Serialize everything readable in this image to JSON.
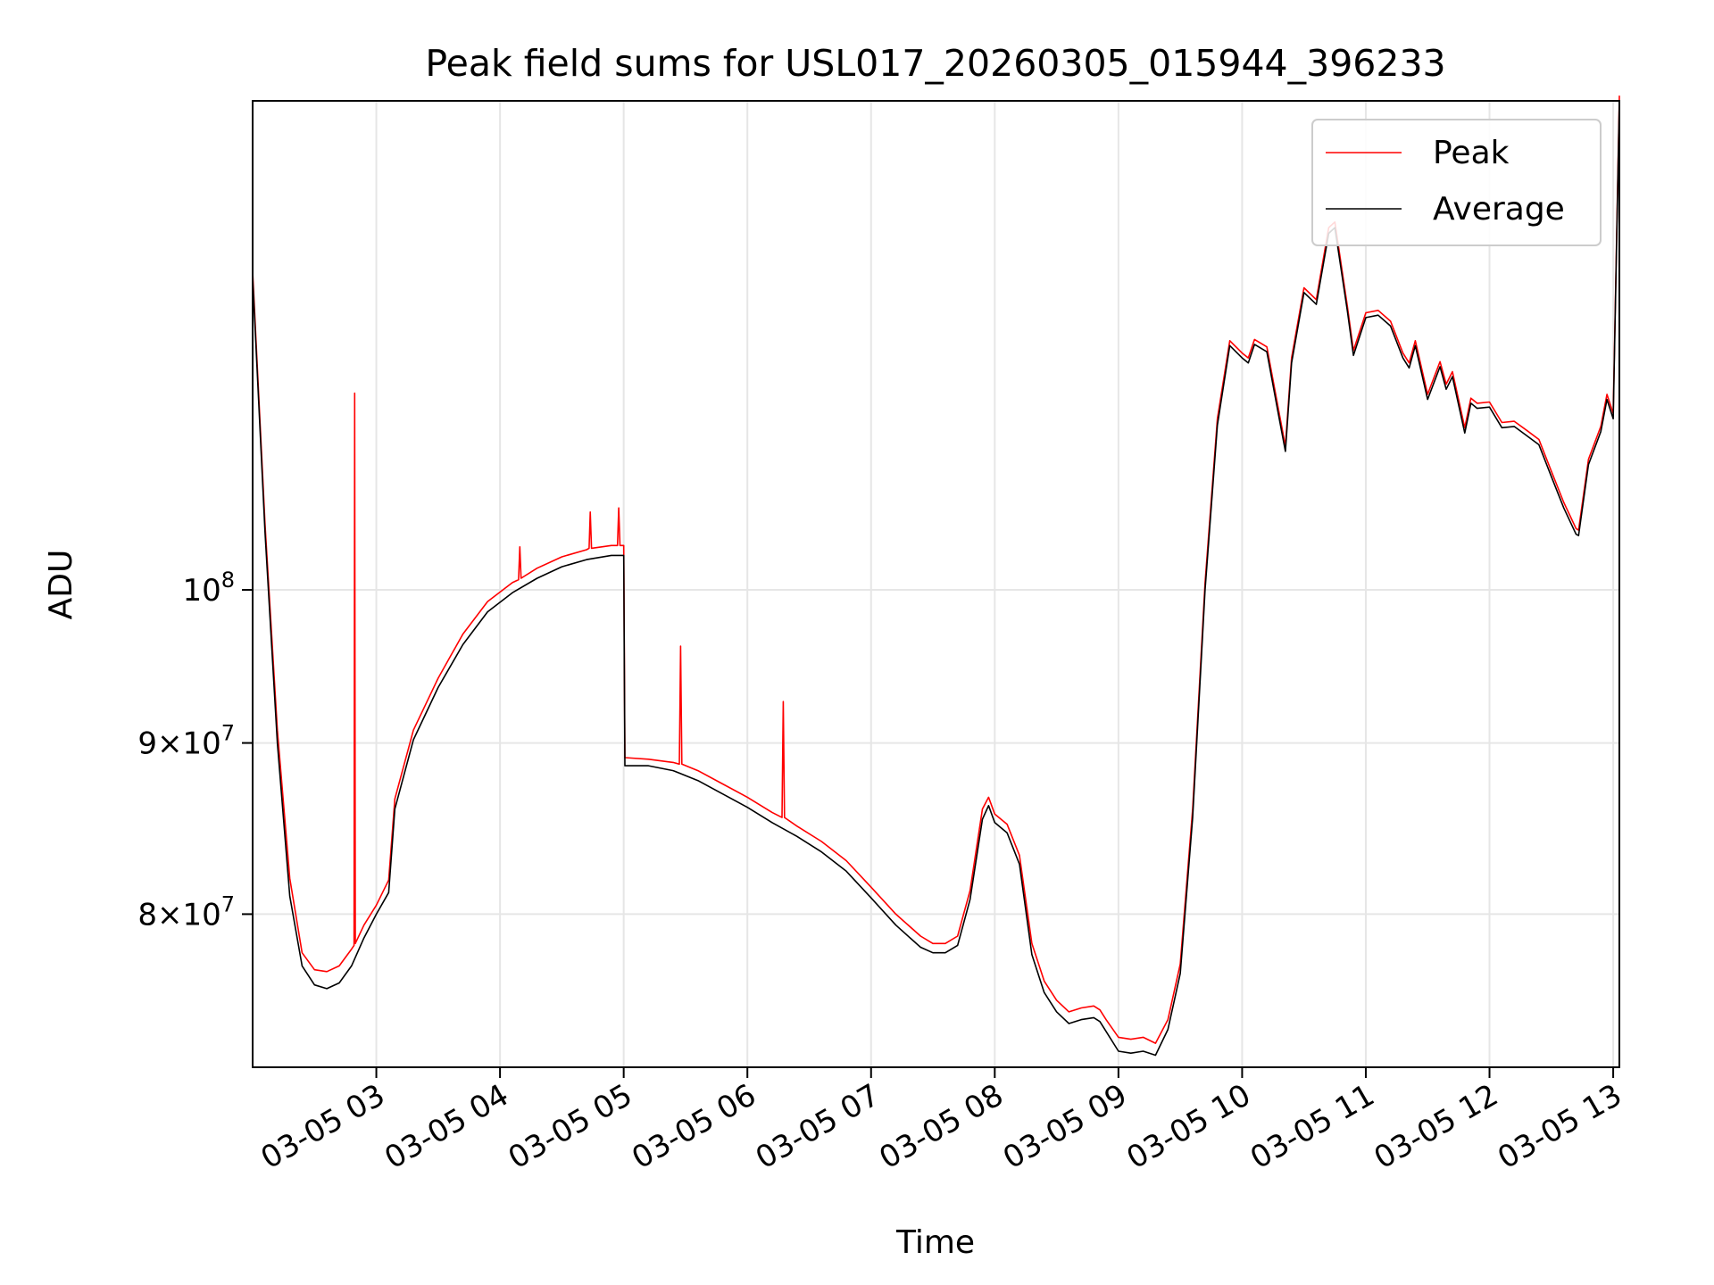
{
  "chart_data": {
    "type": "line",
    "title": "Peak field sums for USL017_20260305_015944_396233",
    "xlabel": "Time",
    "ylabel": "ADU",
    "xlim": [
      2.0,
      13.05
    ],
    "ylim": [
      72000000,
      140000000
    ],
    "yscale": "log",
    "grid": true,
    "legend": {
      "location": "upper right",
      "entries": [
        "Peak",
        "Average"
      ]
    },
    "x_ticks": [
      {
        "value": 3,
        "label": "03-05 03"
      },
      {
        "value": 4,
        "label": "03-05 04"
      },
      {
        "value": 5,
        "label": "03-05 05"
      },
      {
        "value": 6,
        "label": "03-05 06"
      },
      {
        "value": 7,
        "label": "03-05 07"
      },
      {
        "value": 8,
        "label": "03-05 08"
      },
      {
        "value": 9,
        "label": "03-05 09"
      },
      {
        "value": 10,
        "label": "03-05 10"
      },
      {
        "value": 11,
        "label": "03-05 11"
      },
      {
        "value": 12,
        "label": "03-05 12"
      },
      {
        "value": 13,
        "label": "03-05 13"
      }
    ],
    "y_ticks": [
      {
        "value": 80000000,
        "base": "8×10",
        "exp": "7"
      },
      {
        "value": 90000000,
        "base": "9×10",
        "exp": "7"
      },
      {
        "value": 100000000,
        "base": "10",
        "exp": "8"
      }
    ],
    "series": [
      {
        "name": "Average",
        "color": "#000000",
        "x": [
          2.0,
          2.1,
          2.2,
          2.3,
          2.4,
          2.5,
          2.6,
          2.7,
          2.8,
          2.9,
          3.0,
          3.1,
          3.15,
          3.3,
          3.5,
          3.7,
          3.9,
          4.1,
          4.3,
          4.5,
          4.7,
          4.9,
          5.0,
          5.01,
          5.2,
          5.4,
          5.6,
          5.8,
          6.0,
          6.2,
          6.4,
          6.6,
          6.8,
          7.0,
          7.2,
          7.4,
          7.5,
          7.6,
          7.7,
          7.8,
          7.9,
          7.95,
          8.0,
          8.1,
          8.2,
          8.3,
          8.4,
          8.5,
          8.6,
          8.7,
          8.8,
          8.85,
          8.9,
          9.0,
          9.1,
          9.2,
          9.3,
          9.4,
          9.5,
          9.6,
          9.7,
          9.8,
          9.9,
          10.0,
          10.05,
          10.1,
          10.2,
          10.3,
          10.35,
          10.4,
          10.5,
          10.6,
          10.7,
          10.75,
          10.85,
          10.9,
          11.0,
          11.1,
          11.2,
          11.3,
          11.35,
          11.4,
          11.5,
          11.6,
          11.65,
          11.7,
          11.8,
          11.85,
          11.9,
          12.0,
          12.1,
          12.2,
          12.3,
          12.4,
          12.5,
          12.6,
          12.7,
          12.72,
          12.8,
          12.9,
          12.95,
          13.0,
          13.05
        ],
        "values": [
          124000000,
          104000000,
          90000000,
          81000000,
          77200000,
          76200000,
          76000000,
          76300000,
          77200000,
          78700000,
          80000000,
          81200000,
          86000000,
          90200000,
          93500000,
          96300000,
          98500000,
          99800000,
          100800000,
          101600000,
          102100000,
          102400000,
          102400000,
          88600000,
          88600000,
          88300000,
          87700000,
          86900000,
          86100000,
          85200000,
          84400000,
          83500000,
          82400000,
          80900000,
          79400000,
          78200000,
          77900000,
          77900000,
          78300000,
          80800000,
          85400000,
          86200000,
          85200000,
          84600000,
          82800000,
          77800000,
          75800000,
          74800000,
          74200000,
          74400000,
          74500000,
          74300000,
          73800000,
          72800000,
          72700000,
          72800000,
          72600000,
          73900000,
          76800000,
          85500000,
          100000000,
          112000000,
          118300000,
          117300000,
          116900000,
          118400000,
          117800000,
          112500000,
          110000000,
          116900000,
          122700000,
          121700000,
          127800000,
          128300000,
          121200000,
          117500000,
          120600000,
          120800000,
          119900000,
          117300000,
          116500000,
          118300000,
          114000000,
          116600000,
          114800000,
          115800000,
          111400000,
          113700000,
          113300000,
          113400000,
          111800000,
          111900000,
          111200000,
          110500000,
          108100000,
          105800000,
          103900000,
          103800000,
          109000000,
          111500000,
          114000000,
          112500000,
          140000000
        ]
      },
      {
        "name": "Peak",
        "color": "#ff0000",
        "x": [
          2.0,
          2.1,
          2.2,
          2.3,
          2.4,
          2.5,
          2.6,
          2.7,
          2.8,
          2.82,
          2.825,
          2.83,
          2.9,
          3.0,
          3.1,
          3.15,
          3.3,
          3.5,
          3.7,
          3.9,
          4.1,
          4.15,
          4.16,
          4.17,
          4.3,
          4.5,
          4.7,
          4.72,
          4.73,
          4.74,
          4.9,
          4.95,
          4.96,
          4.97,
          5.0,
          5.01,
          5.2,
          5.4,
          5.45,
          5.46,
          5.47,
          5.6,
          5.8,
          6.0,
          6.2,
          6.28,
          6.29,
          6.3,
          6.4,
          6.6,
          6.8,
          7.0,
          7.2,
          7.4,
          7.5,
          7.6,
          7.7,
          7.8,
          7.9,
          7.95,
          8.0,
          8.1,
          8.2,
          8.3,
          8.4,
          8.5,
          8.6,
          8.7,
          8.8,
          8.85,
          8.9,
          9.0,
          9.1,
          9.2,
          9.3,
          9.4,
          9.5,
          9.6,
          9.7,
          9.8,
          9.9,
          10.0,
          10.05,
          10.1,
          10.2,
          10.3,
          10.35,
          10.4,
          10.5,
          10.6,
          10.7,
          10.75,
          10.85,
          10.9,
          11.0,
          11.1,
          11.2,
          11.3,
          11.35,
          11.4,
          11.5,
          11.6,
          11.65,
          11.7,
          11.8,
          11.85,
          11.9,
          12.0,
          12.1,
          12.2,
          12.3,
          12.4,
          12.5,
          12.6,
          12.7,
          12.72,
          12.8,
          12.9,
          12.95,
          13.0,
          13.05
        ],
        "values": [
          124500000,
          104600000,
          90800000,
          82000000,
          77900000,
          77000000,
          76900000,
          77200000,
          78100000,
          78300000,
          114500000,
          78400000,
          79400000,
          80500000,
          81900000,
          86600000,
          90800000,
          94100000,
          97000000,
          99200000,
          100500000,
          100700000,
          103000000,
          100800000,
          101500000,
          102300000,
          102800000,
          102900000,
          105500000,
          102900000,
          103100000,
          103100000,
          105800000,
          103100000,
          103100000,
          89100000,
          89000000,
          88800000,
          88700000,
          96200000,
          88700000,
          88300000,
          87500000,
          86700000,
          85800000,
          85500000,
          92600000,
          85500000,
          85000000,
          84100000,
          83000000,
          81500000,
          80000000,
          78800000,
          78400000,
          78400000,
          78800000,
          81300000,
          86000000,
          86700000,
          85700000,
          85100000,
          83300000,
          78400000,
          76400000,
          75400000,
          74800000,
          75000000,
          75100000,
          74900000,
          74400000,
          73500000,
          73400000,
          73500000,
          73200000,
          74400000,
          77300000,
          86000000,
          100500000,
          112500000,
          118700000,
          117700000,
          117300000,
          118800000,
          118200000,
          112900000,
          110400000,
          117300000,
          123100000,
          122100000,
          128300000,
          128800000,
          121600000,
          117900000,
          121000000,
          121200000,
          120300000,
          117700000,
          116900000,
          118700000,
          114400000,
          117000000,
          115200000,
          116200000,
          111800000,
          114100000,
          113700000,
          113800000,
          112200000,
          112300000,
          111600000,
          110900000,
          108500000,
          106200000,
          104300000,
          104200000,
          109400000,
          111900000,
          114400000,
          112900000,
          140500000
        ]
      }
    ]
  }
}
